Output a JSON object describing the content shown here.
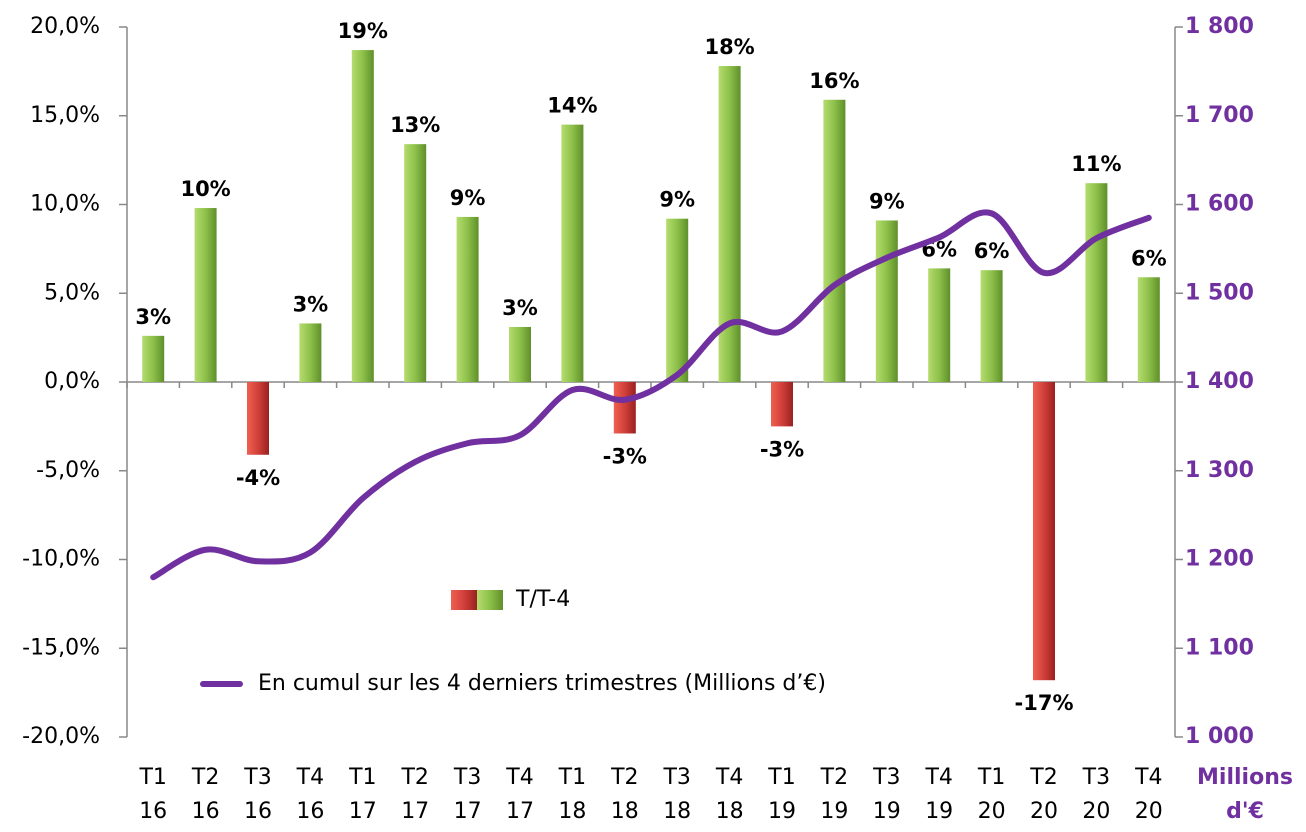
{
  "chart_data": {
    "type": "bar",
    "categories": [
      "T1 16",
      "T2 16",
      "T3 16",
      "T4 16",
      "T1 17",
      "T2 17",
      "T3 17",
      "T4 17",
      "T1 18",
      "T2 18",
      "T3 18",
      "T4 18",
      "T1 19",
      "T2 19",
      "T3 19",
      "T4 19",
      "T1 20",
      "T2 20",
      "T3 20",
      "T4 20"
    ],
    "series": [
      {
        "name": "T/T-4",
        "type": "bar",
        "color": "#8dc04a",
        "negative_color": "#d0403a",
        "values": [
          2.6,
          9.8,
          -4.1,
          3.3,
          18.7,
          13.4,
          9.3,
          3.1,
          14.5,
          -2.9,
          9.2,
          17.8,
          -2.5,
          15.9,
          9.1,
          6.4,
          6.3,
          -16.8,
          11.2,
          5.9
        ],
        "value_labels": [
          "3%",
          "10%",
          "-4%",
          "3%",
          "19%",
          "13%",
          "9%",
          "3%",
          "14%",
          "-3%",
          "9%",
          "18%",
          "-3%",
          "16%",
          "9%",
          "6%",
          "6%",
          "-17%",
          "11%",
          "6%"
        ]
      },
      {
        "name": "En cumul sur les 4 derniers trimestres (Millions d’€)",
        "type": "line",
        "axis": "y2",
        "color": "#7030a0",
        "values": [
          1180,
          1211,
          1198,
          1208,
          1269,
          1310,
          1331,
          1340,
          1391,
          1380,
          1408,
          1466,
          1457,
          1509,
          1540,
          1563,
          1590,
          1523,
          1562,
          1585
        ]
      }
    ],
    "ylim": [
      -20,
      20
    ],
    "yticks": [
      {
        "value": -20,
        "label": "-20,0%"
      },
      {
        "value": -15,
        "label": "-15,0%"
      },
      {
        "value": -10,
        "label": "-10,0%"
      },
      {
        "value": -5,
        "label": "-5,0%"
      },
      {
        "value": 0,
        "label": "0,0%"
      },
      {
        "value": 5,
        "label": "5,0%"
      },
      {
        "value": 10,
        "label": "10,0%"
      },
      {
        "value": 15,
        "label": "15,0%"
      },
      {
        "value": 20,
        "label": "20,0%"
      }
    ],
    "y2lim": [
      1000,
      1800
    ],
    "y2ticks": [
      {
        "value": 1000,
        "label": "1 000"
      },
      {
        "value": 1100,
        "label": "1 100"
      },
      {
        "value": 1200,
        "label": "1 200"
      },
      {
        "value": 1300,
        "label": "1 300"
      },
      {
        "value": 1400,
        "label": "1 400"
      },
      {
        "value": 1500,
        "label": "1 500"
      },
      {
        "value": 1600,
        "label": "1 600"
      },
      {
        "value": 1700,
        "label": "1 700"
      },
      {
        "value": 1800,
        "label": "1 800"
      }
    ],
    "y2label": "Millions d'€"
  }
}
